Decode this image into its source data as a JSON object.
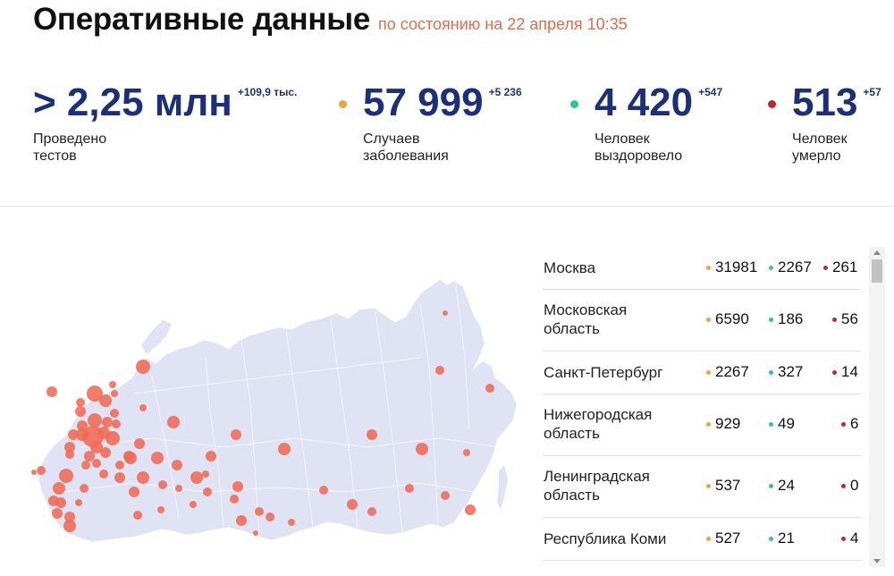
{
  "header": {
    "title": "Оперативные данные",
    "subtitle": "по состоянию на 22 апреля 10:35"
  },
  "stats": [
    {
      "value": "> 2,25 млн",
      "delta": "+109,9 тыс.",
      "label": "Проведено\nтестов",
      "dot_color": ""
    },
    {
      "value": "57 999",
      "delta": "+5 236",
      "label": "Случаев\nзаболевания",
      "dot_color": "#f0a045"
    },
    {
      "value": "4 420",
      "delta": "+547",
      "label": "Человек\nвыздоровело",
      "dot_color": "#2bc4a0"
    },
    {
      "value": "513",
      "delta": "+57",
      "label": "Человек\nумерло",
      "dot_color": "#c0272d"
    }
  ],
  "colors": {
    "cases": "#f0a045",
    "recovered": "#2bc4a0",
    "deaths": "#c0272d",
    "map_land": "#dfe3f3",
    "map_bubble": "#f16a55"
  },
  "map": {
    "icon": "russia-map"
  },
  "regions": [
    {
      "name": "Москва",
      "cases": "31981",
      "recovered": "2267",
      "deaths": "261"
    },
    {
      "name": "Московская\nобласть",
      "cases": "6590",
      "recovered": "186",
      "deaths": "56"
    },
    {
      "name": "Санкт-Петербург",
      "cases": "2267",
      "recovered": "327",
      "deaths": "14"
    },
    {
      "name": "Нижегородская\nобласть",
      "cases": "929",
      "recovered": "49",
      "deaths": "6"
    },
    {
      "name": "Ленинградская\nобласть",
      "cases": "537",
      "recovered": "24",
      "deaths": "0"
    },
    {
      "name": "Республика Коми",
      "cases": "527",
      "recovered": "21",
      "deaths": "4"
    }
  ]
}
